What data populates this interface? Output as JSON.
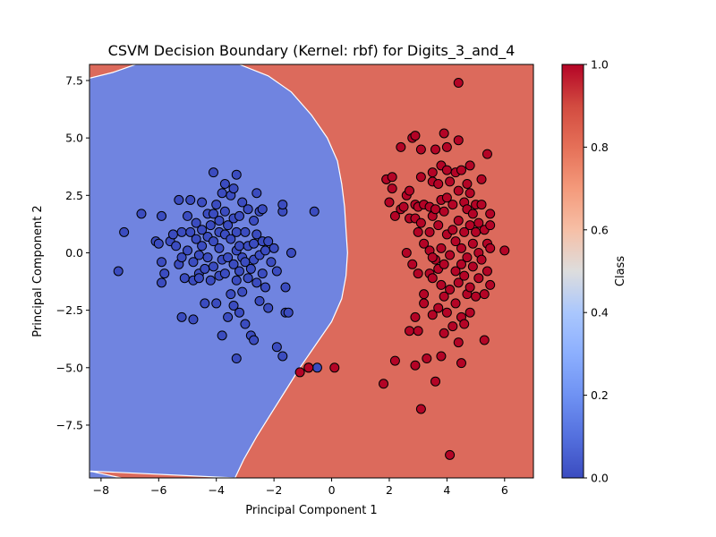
{
  "chart_data": {
    "type": "scatter",
    "title": "CSVM Decision Boundary (Kernel: rbf) for Digits_3_and_4",
    "xlabel": "Principal Component 1",
    "ylabel": "Principal Component 2",
    "xlim": [
      -8.4,
      7.0
    ],
    "ylim": [
      -9.8,
      8.2
    ],
    "xticks": [
      -8,
      -6,
      -4,
      -2,
      0,
      2,
      4,
      6
    ],
    "yticks": [
      -7.5,
      -5.0,
      -2.5,
      0.0,
      2.5,
      5.0,
      7.5
    ],
    "grid": false,
    "colorbar": {
      "label": "Class",
      "ticks": [
        "0.0",
        "0.2",
        "0.4",
        "0.6",
        "0.8",
        "1.0"
      ],
      "range": [
        0.0,
        1.0
      ],
      "colormap": "coolwarm"
    },
    "regions": {
      "class0_fill": "#7084e0",
      "class1_fill": "#dc6a5c",
      "boundary_x_at_y": [
        [
          8.2,
          -3.2
        ],
        [
          7.7,
          -2.2
        ],
        [
          7.0,
          -1.4
        ],
        [
          6.0,
          -0.7
        ],
        [
          5.0,
          -0.15
        ],
        [
          4.0,
          0.2
        ],
        [
          3.0,
          0.35
        ],
        [
          2.0,
          0.45
        ],
        [
          1.0,
          0.5
        ],
        [
          0.0,
          0.55
        ],
        [
          -1.0,
          0.5
        ],
        [
          -2.0,
          0.35
        ],
        [
          -3.0,
          0.0
        ],
        [
          -4.0,
          -0.55
        ],
        [
          -5.0,
          -1.1
        ],
        [
          -6.0,
          -1.6
        ],
        [
          -7.0,
          -2.1
        ],
        [
          -8.0,
          -2.6
        ],
        [
          -9.0,
          -3.05
        ],
        [
          -9.8,
          -3.35
        ]
      ],
      "top_left_corner": [
        [
          7.6,
          -8.4
        ],
        [
          7.85,
          -7.6
        ],
        [
          8.2,
          -6.8
        ]
      ],
      "bottom_left_corner": [
        [
          -9.5,
          -8.4
        ],
        [
          -9.8,
          -7.3
        ]
      ]
    },
    "series": [
      {
        "class": 0,
        "color": "#3b4cc0",
        "points": [
          [
            -7.4,
            -0.8
          ],
          [
            -7.2,
            0.9
          ],
          [
            -6.6,
            1.7
          ],
          [
            -6.1,
            0.5
          ],
          [
            -6.0,
            0.4
          ],
          [
            -5.9,
            1.6
          ],
          [
            -5.9,
            -0.4
          ],
          [
            -5.9,
            -1.3
          ],
          [
            -5.8,
            -0.9
          ],
          [
            -5.6,
            0.5
          ],
          [
            -5.5,
            0.8
          ],
          [
            -5.4,
            0.3
          ],
          [
            -5.3,
            2.3
          ],
          [
            -5.3,
            -0.5
          ],
          [
            -5.2,
            0.9
          ],
          [
            -5.2,
            -0.2
          ],
          [
            -5.2,
            -2.8
          ],
          [
            -5.1,
            -1.1
          ],
          [
            -5.0,
            1.6
          ],
          [
            -5.0,
            0.1
          ],
          [
            -4.9,
            2.3
          ],
          [
            -4.9,
            0.9
          ],
          [
            -4.8,
            -0.4
          ],
          [
            -4.8,
            -1.2
          ],
          [
            -4.8,
            -2.9
          ],
          [
            -4.7,
            1.3
          ],
          [
            -4.7,
            0.6
          ],
          [
            -4.6,
            -0.1
          ],
          [
            -4.6,
            -0.9
          ],
          [
            -4.6,
            -1.1
          ],
          [
            -4.5,
            2.2
          ],
          [
            -4.5,
            1.0
          ],
          [
            -4.5,
            0.3
          ],
          [
            -4.4,
            -0.7
          ],
          [
            -4.4,
            -2.2
          ],
          [
            -4.3,
            1.7
          ],
          [
            -4.3,
            0.7
          ],
          [
            -4.3,
            -0.2
          ],
          [
            -4.2,
            1.2
          ],
          [
            -4.2,
            -1.2
          ],
          [
            -4.1,
            3.5
          ],
          [
            -4.1,
            1.7
          ],
          [
            -4.1,
            0.5
          ],
          [
            -4.1,
            -0.6
          ],
          [
            -4.0,
            2.1
          ],
          [
            -4.0,
            -2.2
          ],
          [
            -3.9,
            1.4
          ],
          [
            -3.9,
            0.9
          ],
          [
            -3.9,
            0.2
          ],
          [
            -3.9,
            -1.0
          ],
          [
            -3.8,
            2.6
          ],
          [
            -3.8,
            -0.3
          ],
          [
            -3.8,
            -3.6
          ],
          [
            -3.7,
            3.0
          ],
          [
            -3.7,
            1.8
          ],
          [
            -3.7,
            0.8
          ],
          [
            -3.7,
            -0.9
          ],
          [
            -3.6,
            1.2
          ],
          [
            -3.6,
            -0.2
          ],
          [
            -3.6,
            -2.8
          ],
          [
            -3.5,
            2.5
          ],
          [
            -3.5,
            0.6
          ],
          [
            -3.5,
            -1.8
          ],
          [
            -3.4,
            2.8
          ],
          [
            -3.4,
            1.5
          ],
          [
            -3.4,
            -0.5
          ],
          [
            -3.4,
            -2.3
          ],
          [
            -3.3,
            3.4
          ],
          [
            -3.3,
            0.9
          ],
          [
            -3.3,
            0.1
          ],
          [
            -3.3,
            -1.2
          ],
          [
            -3.3,
            -4.6
          ],
          [
            -3.2,
            1.6
          ],
          [
            -3.2,
            0.3
          ],
          [
            -3.2,
            -0.8
          ],
          [
            -3.2,
            -2.6
          ],
          [
            -3.1,
            2.2
          ],
          [
            -3.1,
            -0.2
          ],
          [
            -3.1,
            -1.7
          ],
          [
            -3.0,
            0.9
          ],
          [
            -3.0,
            -0.4
          ],
          [
            -3.0,
            -3.1
          ],
          [
            -2.9,
            1.9
          ],
          [
            -2.9,
            0.3
          ],
          [
            -2.9,
            -1.1
          ],
          [
            -2.8,
            -0.7
          ],
          [
            -2.8,
            -3.6
          ],
          [
            -2.7,
            1.4
          ],
          [
            -2.7,
            0.4
          ],
          [
            -2.7,
            -0.3
          ],
          [
            -2.7,
            -3.8
          ],
          [
            -2.6,
            2.6
          ],
          [
            -2.6,
            0.8
          ],
          [
            -2.6,
            -1.3
          ],
          [
            -2.5,
            1.8
          ],
          [
            -2.5,
            -0.1
          ],
          [
            -2.5,
            -2.1
          ],
          [
            -2.4,
            1.9
          ],
          [
            -2.4,
            0.5
          ],
          [
            -2.4,
            -0.9
          ],
          [
            -2.3,
            0.1
          ],
          [
            -2.3,
            -1.5
          ],
          [
            -2.2,
            0.5
          ],
          [
            -2.2,
            -2.4
          ],
          [
            -2.1,
            -0.4
          ],
          [
            -2.0,
            0.2
          ],
          [
            -1.9,
            -0.8
          ],
          [
            -1.9,
            -4.1
          ],
          [
            -1.7,
            1.8
          ],
          [
            -1.7,
            2.1
          ],
          [
            -1.7,
            -4.5
          ],
          [
            -1.6,
            -1.5
          ],
          [
            -1.6,
            -2.6
          ],
          [
            -1.5,
            -2.6
          ],
          [
            -1.4,
            0.0
          ],
          [
            -0.6,
            1.8
          ],
          [
            -0.5,
            -5.0
          ],
          [
            -0.8,
            -5.0
          ]
        ]
      },
      {
        "class": 1,
        "color": "#b40426",
        "points": [
          [
            -1.1,
            -5.2
          ],
          [
            -0.8,
            -5.0
          ],
          [
            0.1,
            -5.0
          ],
          [
            1.8,
            -5.7
          ],
          [
            1.9,
            3.2
          ],
          [
            1.9,
            3.2
          ],
          [
            2.0,
            2.2
          ],
          [
            2.1,
            3.3
          ],
          [
            2.1,
            2.8
          ],
          [
            2.2,
            1.6
          ],
          [
            2.2,
            -4.7
          ],
          [
            2.4,
            4.6
          ],
          [
            2.4,
            1.9
          ],
          [
            2.5,
            2.0
          ],
          [
            2.6,
            2.5
          ],
          [
            2.6,
            0.0
          ],
          [
            2.7,
            2.7
          ],
          [
            2.7,
            1.5
          ],
          [
            2.7,
            -3.4
          ],
          [
            2.8,
            5.0
          ],
          [
            2.8,
            -0.5
          ],
          [
            2.9,
            5.1
          ],
          [
            2.9,
            2.1
          ],
          [
            2.9,
            1.5
          ],
          [
            2.9,
            -2.8
          ],
          [
            2.9,
            -4.9
          ],
          [
            3.0,
            2.0
          ],
          [
            3.0,
            0.9
          ],
          [
            3.0,
            -0.9
          ],
          [
            3.0,
            -3.4
          ],
          [
            3.1,
            4.5
          ],
          [
            3.1,
            3.3
          ],
          [
            3.1,
            1.3
          ],
          [
            3.1,
            -6.8
          ],
          [
            3.2,
            2.1
          ],
          [
            3.2,
            0.4
          ],
          [
            3.2,
            -1.8
          ],
          [
            3.2,
            -2.2
          ],
          [
            3.3,
            -4.6
          ],
          [
            3.4,
            2.0
          ],
          [
            3.4,
            0.9
          ],
          [
            3.4,
            0.1
          ],
          [
            3.4,
            -0.9
          ],
          [
            3.5,
            3.5
          ],
          [
            3.5,
            3.1
          ],
          [
            3.5,
            1.6
          ],
          [
            3.5,
            -1.1
          ],
          [
            3.5,
            -2.7
          ],
          [
            3.6,
            4.5
          ],
          [
            3.6,
            1.9
          ],
          [
            3.6,
            -0.3
          ],
          [
            3.6,
            -5.6
          ],
          [
            3.7,
            3.0
          ],
          [
            3.7,
            1.2
          ],
          [
            3.7,
            -0.7
          ],
          [
            3.7,
            -2.4
          ],
          [
            3.8,
            3.8
          ],
          [
            3.8,
            2.3
          ],
          [
            3.8,
            0.2
          ],
          [
            3.8,
            -1.4
          ],
          [
            3.8,
            -4.5
          ],
          [
            3.9,
            5.2
          ],
          [
            3.9,
            1.8
          ],
          [
            3.9,
            -0.5
          ],
          [
            3.9,
            -1.9
          ],
          [
            3.9,
            -3.5
          ],
          [
            4.0,
            4.6
          ],
          [
            4.0,
            3.6
          ],
          [
            4.0,
            2.4
          ],
          [
            4.0,
            0.8
          ],
          [
            4.0,
            -2.6
          ],
          [
            4.1,
            3.1
          ],
          [
            4.1,
            -0.1
          ],
          [
            4.1,
            -1.6
          ],
          [
            4.1,
            -8.8
          ],
          [
            4.2,
            2.1
          ],
          [
            4.2,
            1.0
          ],
          [
            4.2,
            -3.2
          ],
          [
            4.3,
            3.5
          ],
          [
            4.3,
            0.5
          ],
          [
            4.3,
            -0.8
          ],
          [
            4.3,
            -2.2
          ],
          [
            4.4,
            4.9
          ],
          [
            4.4,
            2.7
          ],
          [
            4.4,
            1.4
          ],
          [
            4.4,
            -1.3
          ],
          [
            4.4,
            -3.9
          ],
          [
            4.5,
            3.6
          ],
          [
            4.5,
            0.2
          ],
          [
            4.5,
            -0.5
          ],
          [
            4.5,
            -2.8
          ],
          [
            4.5,
            -4.8
          ],
          [
            4.6,
            2.2
          ],
          [
            4.6,
            0.9
          ],
          [
            4.6,
            -1.0
          ],
          [
            4.6,
            -3.1
          ],
          [
            4.7,
            3.0
          ],
          [
            4.7,
            1.9
          ],
          [
            4.7,
            -0.2
          ],
          [
            4.7,
            -1.8
          ],
          [
            4.8,
            3.8
          ],
          [
            4.8,
            2.6
          ],
          [
            4.8,
            1.2
          ],
          [
            4.8,
            -1.5
          ],
          [
            4.8,
            -2.6
          ],
          [
            4.9,
            1.7
          ],
          [
            4.9,
            0.4
          ],
          [
            4.9,
            -0.6
          ],
          [
            5.0,
            2.1
          ],
          [
            5.0,
            0.9
          ],
          [
            5.0,
            -1.9
          ],
          [
            5.1,
            1.3
          ],
          [
            5.1,
            0.0
          ],
          [
            5.1,
            -1.1
          ],
          [
            5.2,
            3.2
          ],
          [
            5.2,
            2.1
          ],
          [
            5.2,
            -0.3
          ],
          [
            5.3,
            1.0
          ],
          [
            5.3,
            -1.8
          ],
          [
            5.3,
            -3.8
          ],
          [
            5.4,
            4.3
          ],
          [
            5.4,
            0.4
          ],
          [
            5.4,
            -0.8
          ],
          [
            5.5,
            1.7
          ],
          [
            5.5,
            1.2
          ],
          [
            5.5,
            0.2
          ],
          [
            5.5,
            -1.4
          ],
          [
            6.0,
            0.1
          ],
          [
            4.4,
            7.4
          ],
          [
            3.5,
            -0.2
          ]
        ]
      }
    ]
  }
}
